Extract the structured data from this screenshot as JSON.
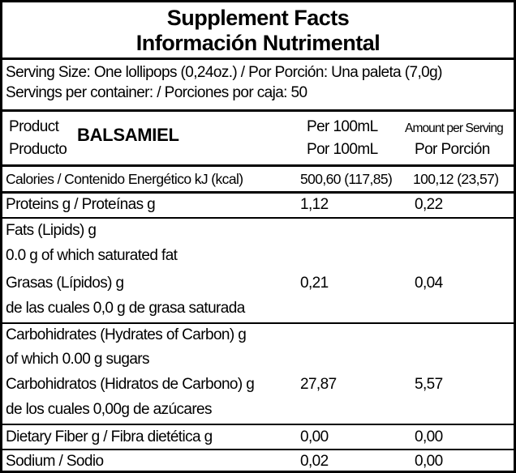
{
  "header": {
    "title_en": "Supplement Facts",
    "title_es": "Información Nutrimental"
  },
  "serving": {
    "size": "Serving Size: One lollipops (0,24oz.) / Por Porción: Una paleta (7,0g)",
    "per_container": "Servings per container: / Porciones por caja: 50"
  },
  "product": {
    "label_en": "Product",
    "label_es": "Producto",
    "name": "BALSAMIEL",
    "col1_top": "Per 100mL",
    "col1_bottom": "Por 100mL",
    "col2_top": "Amount per Serving",
    "col2_bottom": "Por Porción"
  },
  "rows": {
    "calories": {
      "label": "Calories / Contenido Energético  kJ (kcal)",
      "per100": "500,60 (117,85)",
      "serving": "100,12 (23,57)"
    },
    "proteins": {
      "label": "Proteins g / Proteínas g",
      "per100": "1,12",
      "serving": "0,22"
    },
    "fats": {
      "line1": "Fats (Lipids) g",
      "line2": "0.0 g of which saturated fat",
      "line3": "Grasas (Lípidos) g",
      "line4": "de las cuales 0,0 g de grasa saturada",
      "per100": "0,21",
      "serving": "0,04"
    },
    "carbs": {
      "line1": "Carbohidrates (Hydrates of Carbon) g",
      "line2": "of which 0.00 g sugars",
      "line3": "Carbohidratos (Hidratos de Carbono) g",
      "line4": "de los cuales 0,00g de azúcares",
      "per100": "27,87",
      "serving": "5,57"
    },
    "fiber": {
      "label": "Dietary Fiber g / Fibra dietética g",
      "per100": "0,00",
      "serving": "0,00"
    },
    "sodium": {
      "label": "Sodium / Sodio",
      "per100": "0,02",
      "serving": "0,00"
    }
  }
}
